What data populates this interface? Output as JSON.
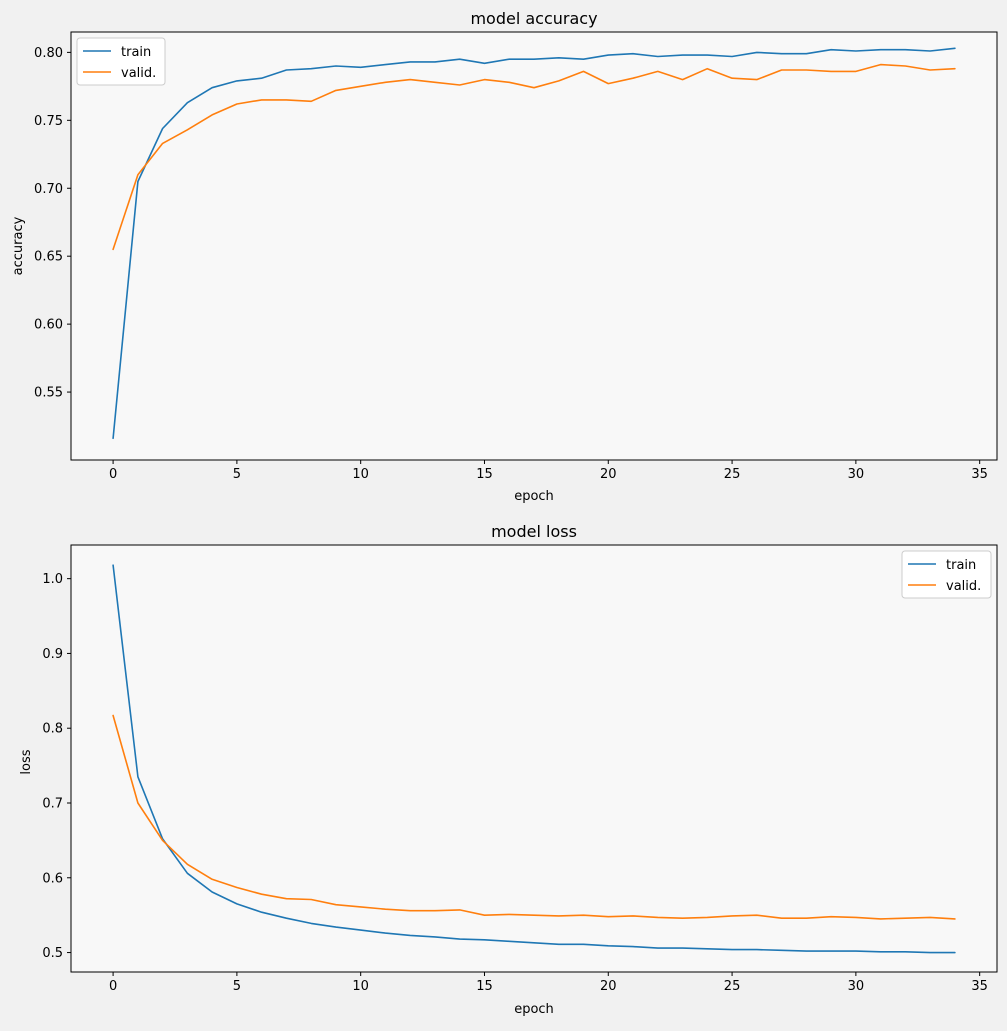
{
  "chart_data": [
    {
      "type": "line",
      "title": "model accuracy",
      "xlabel": "epoch",
      "ylabel": "accuracy",
      "xlim": [
        -1.7,
        35.7
      ],
      "ylim": [
        0.5,
        0.815
      ],
      "xticks": [
        0,
        5,
        10,
        15,
        20,
        25,
        30,
        35
      ],
      "yticks": [
        0.55,
        0.6,
        0.65,
        0.7,
        0.75,
        0.8
      ],
      "ytick_decimals": 2,
      "grid": false,
      "legend_position": "top-left",
      "x": [
        0,
        1,
        2,
        3,
        4,
        5,
        6,
        7,
        8,
        9,
        10,
        11,
        12,
        13,
        14,
        15,
        16,
        17,
        18,
        19,
        20,
        21,
        22,
        23,
        24,
        25,
        26,
        27,
        28,
        29,
        30,
        31,
        32,
        33,
        34
      ],
      "series": [
        {
          "name": "train",
          "color": "#1f77b4",
          "values": [
            0.516,
            0.705,
            0.744,
            0.763,
            0.774,
            0.779,
            0.781,
            0.787,
            0.788,
            0.79,
            0.789,
            0.791,
            0.793,
            0.793,
            0.795,
            0.792,
            0.795,
            0.795,
            0.796,
            0.795,
            0.798,
            0.799,
            0.797,
            0.798,
            0.798,
            0.797,
            0.8,
            0.799,
            0.799,
            0.802,
            0.801,
            0.802,
            0.802,
            0.801,
            0.803
          ]
        },
        {
          "name": "valid.",
          "color": "#ff7f0e",
          "values": [
            0.655,
            0.71,
            0.733,
            0.743,
            0.754,
            0.762,
            0.765,
            0.765,
            0.764,
            0.772,
            0.775,
            0.778,
            0.78,
            0.778,
            0.776,
            0.78,
            0.778,
            0.774,
            0.779,
            0.786,
            0.777,
            0.781,
            0.786,
            0.78,
            0.788,
            0.781,
            0.78,
            0.787,
            0.787,
            0.786,
            0.786,
            0.791,
            0.79,
            0.787,
            0.788
          ]
        }
      ]
    },
    {
      "type": "line",
      "title": "model loss",
      "xlabel": "epoch",
      "ylabel": "loss",
      "xlim": [
        -1.7,
        35.7
      ],
      "ylim": [
        0.474,
        1.045
      ],
      "xticks": [
        0,
        5,
        10,
        15,
        20,
        25,
        30,
        35
      ],
      "yticks": [
        0.5,
        0.6,
        0.7,
        0.8,
        0.9,
        1.0
      ],
      "ytick_decimals": 1,
      "grid": false,
      "legend_position": "top-right",
      "x": [
        0,
        1,
        2,
        3,
        4,
        5,
        6,
        7,
        8,
        9,
        10,
        11,
        12,
        13,
        14,
        15,
        16,
        17,
        18,
        19,
        20,
        21,
        22,
        23,
        24,
        25,
        26,
        27,
        28,
        29,
        30,
        31,
        32,
        33,
        34
      ],
      "series": [
        {
          "name": "train",
          "color": "#1f77b4",
          "values": [
            1.018,
            0.735,
            0.652,
            0.606,
            0.581,
            0.565,
            0.554,
            0.546,
            0.539,
            0.534,
            0.53,
            0.526,
            0.523,
            0.521,
            0.518,
            0.517,
            0.515,
            0.513,
            0.511,
            0.511,
            0.509,
            0.508,
            0.506,
            0.506,
            0.505,
            0.504,
            0.504,
            0.503,
            0.502,
            0.502,
            0.502,
            0.501,
            0.501,
            0.5,
            0.5
          ]
        },
        {
          "name": "valid.",
          "color": "#ff7f0e",
          "values": [
            0.817,
            0.7,
            0.65,
            0.618,
            0.598,
            0.587,
            0.578,
            0.572,
            0.571,
            0.564,
            0.561,
            0.558,
            0.556,
            0.556,
            0.557,
            0.55,
            0.551,
            0.55,
            0.549,
            0.55,
            0.548,
            0.549,
            0.547,
            0.546,
            0.547,
            0.549,
            0.55,
            0.546,
            0.546,
            0.548,
            0.547,
            0.545,
            0.546,
            0.547,
            0.545
          ]
        }
      ]
    }
  ]
}
